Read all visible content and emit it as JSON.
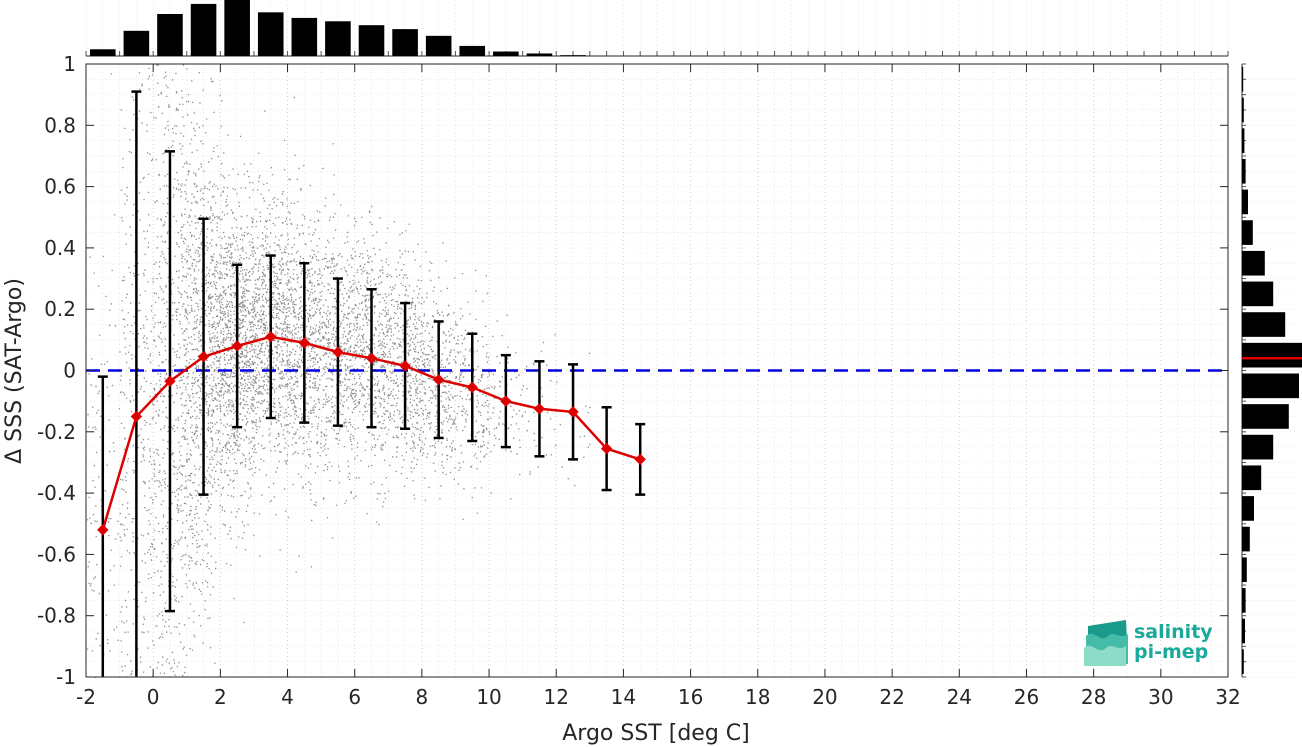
{
  "chart_data": {
    "type": "scatter",
    "xlabel": "Argo SST [deg C]",
    "ylabel": "Δ SSS (SAT-Argo)",
    "xlim": [
      -2,
      32
    ],
    "ylim": [
      -1,
      1
    ],
    "xticks": [
      -2,
      0,
      2,
      4,
      6,
      8,
      10,
      12,
      14,
      16,
      18,
      20,
      22,
      24,
      26,
      28,
      30,
      32
    ],
    "yticks": [
      -1,
      -0.8,
      -0.6,
      -0.4,
      -0.2,
      0,
      0.2,
      0.4,
      0.6,
      0.8,
      1
    ],
    "xtick_labels": [
      "-2",
      "0",
      "2",
      "4",
      "6",
      "8",
      "10",
      "12",
      "14",
      "16",
      "18",
      "20",
      "22",
      "24",
      "26",
      "28",
      "30",
      "32"
    ],
    "ytick_labels": [
      "-1",
      "-0.8",
      "-0.6",
      "-0.4",
      "-0.2",
      "0",
      "0.2",
      "0.4",
      "0.6",
      "0.8",
      "1"
    ],
    "grid": true,
    "zero_line": {
      "y": 0,
      "style": "dashed",
      "color": "#0000dd"
    },
    "binned_mean": {
      "color": "#dd0000",
      "x": [
        -1.5,
        -0.5,
        0.5,
        1.5,
        2.5,
        3.5,
        4.5,
        5.5,
        6.5,
        7.5,
        8.5,
        9.5,
        10.5,
        11.5,
        12.5,
        13.5,
        14.5
      ],
      "y": [
        -0.52,
        -0.15,
        -0.035,
        0.045,
        0.08,
        0.11,
        0.09,
        0.06,
        0.04,
        0.015,
        -0.03,
        -0.055,
        -0.1,
        -0.125,
        -0.135,
        -0.255,
        -0.29
      ],
      "std": [
        0.5,
        1.06,
        0.75,
        0.45,
        0.265,
        0.265,
        0.26,
        0.24,
        0.225,
        0.205,
        0.19,
        0.175,
        0.15,
        0.155,
        0.155,
        0.135,
        0.115
      ]
    },
    "scatter": {
      "color": "#808080",
      "n_points": 24000,
      "x_range": [
        -2,
        15
      ],
      "description_style": "dense gray point cloud"
    },
    "top_histogram": {
      "bin_centers": [
        -1.5,
        -0.5,
        0.5,
        1.5,
        2.5,
        3.5,
        4.5,
        5.5,
        6.5,
        7.5,
        8.5,
        9.5,
        10.5,
        11.5,
        12.5
      ],
      "counts": [
        0.12,
        0.45,
        0.75,
        0.93,
        1.0,
        0.78,
        0.68,
        0.62,
        0.55,
        0.48,
        0.36,
        0.18,
        0.08,
        0.045,
        0.015
      ]
    },
    "right_histogram": {
      "bin_centers": [
        0.95,
        0.85,
        0.75,
        0.65,
        0.55,
        0.45,
        0.35,
        0.25,
        0.15,
        0.05,
        -0.05,
        -0.15,
        -0.25,
        -0.35,
        -0.45,
        -0.55,
        -0.65,
        -0.75,
        -0.85,
        -0.95
      ],
      "counts": [
        0.02,
        0.03,
        0.04,
        0.06,
        0.1,
        0.18,
        0.38,
        0.52,
        0.72,
        1.0,
        0.95,
        0.78,
        0.52,
        0.32,
        0.2,
        0.13,
        0.08,
        0.06,
        0.05,
        0.03
      ],
      "median": 0.04,
      "median_color": "#dd0000"
    }
  },
  "logo": {
    "line1": "salinity",
    "line2": "pi-mep"
  }
}
